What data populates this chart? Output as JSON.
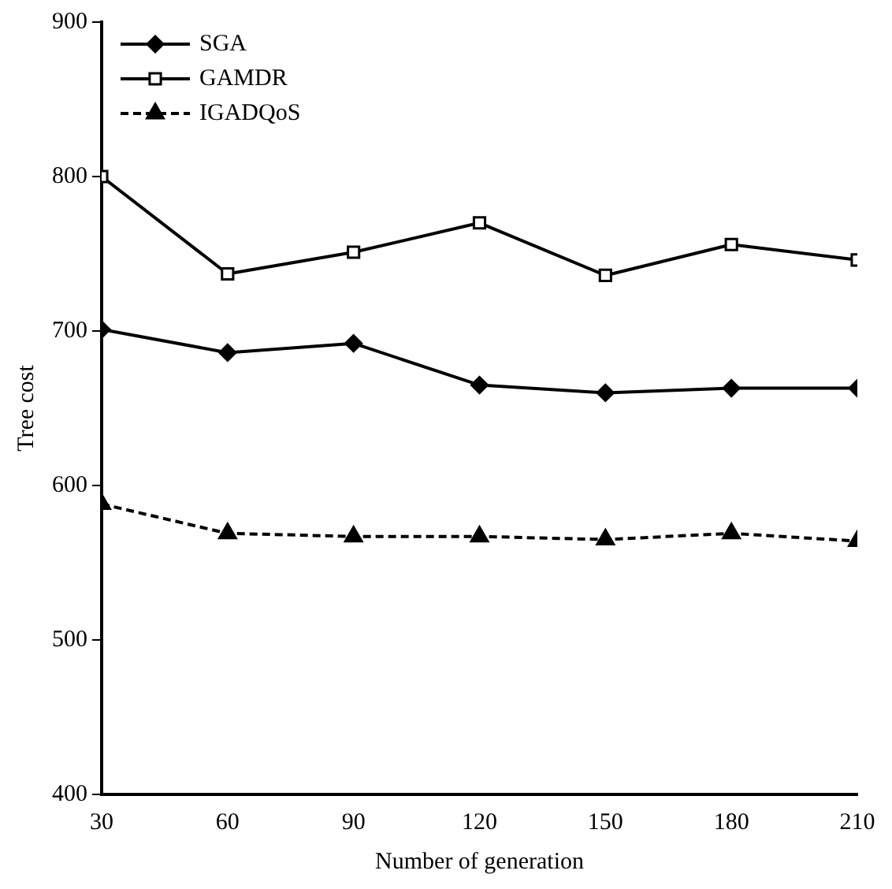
{
  "chart_data": {
    "type": "line",
    "xlabel": "Number of generation",
    "ylabel": "Tree cost",
    "x": [
      30,
      60,
      90,
      120,
      150,
      180,
      210
    ],
    "series": [
      {
        "name": "SGA",
        "color": "#000000",
        "marker": "diamond",
        "line_style": "solid",
        "values": [
          701,
          686,
          692,
          665,
          660,
          663,
          663
        ]
      },
      {
        "name": "GAMDR",
        "color": "#000000",
        "marker": "square",
        "line_style": "solid",
        "values": [
          800,
          737,
          751,
          770,
          736,
          756,
          746
        ]
      },
      {
        "name": "IGADQoS",
        "color": "#000000",
        "marker": "triangle",
        "line_style": "dashed",
        "values": [
          588,
          569,
          567,
          567,
          565,
          569,
          564
        ]
      }
    ],
    "xlim": [
      30,
      210
    ],
    "xticks": [
      30,
      60,
      90,
      120,
      150,
      180,
      210
    ],
    "ylim": [
      400,
      900
    ],
    "yticks": [
      400,
      500,
      600,
      700,
      800,
      900
    ],
    "grid": false,
    "legend": "top left"
  }
}
